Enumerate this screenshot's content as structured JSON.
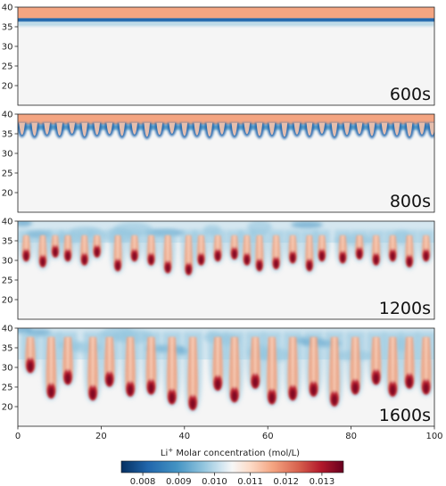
{
  "chart_data": [
    {
      "type": "heatmap",
      "label": "600s",
      "xlim": [
        0,
        100
      ],
      "ylim": [
        15,
        40
      ],
      "yticks": [
        20,
        25,
        30,
        35,
        40
      ],
      "front_y": 36.5,
      "fingers": []
    },
    {
      "type": "heatmap",
      "label": "800s",
      "xlim": [
        0,
        100
      ],
      "ylim": [
        15,
        40
      ],
      "yticks": [
        20,
        25,
        30,
        35,
        40
      ],
      "front_y": 36.0,
      "fingers": [
        {
          "x": 1,
          "tip": 34.5
        },
        {
          "x": 4,
          "tip": 34.2
        },
        {
          "x": 7,
          "tip": 34.6
        },
        {
          "x": 10,
          "tip": 34.3
        },
        {
          "x": 13,
          "tip": 34.8
        },
        {
          "x": 16,
          "tip": 34.1
        },
        {
          "x": 19,
          "tip": 34.5
        },
        {
          "x": 22,
          "tip": 34.7
        },
        {
          "x": 25,
          "tip": 34.2
        },
        {
          "x": 28,
          "tip": 34.6
        },
        {
          "x": 31,
          "tip": 34.0
        },
        {
          "x": 34,
          "tip": 34.5
        },
        {
          "x": 37,
          "tip": 34.8
        },
        {
          "x": 40,
          "tip": 34.2
        },
        {
          "x": 43,
          "tip": 34.4
        },
        {
          "x": 46,
          "tip": 34.1
        },
        {
          "x": 49,
          "tip": 34.6
        },
        {
          "x": 52,
          "tip": 34.3
        },
        {
          "x": 55,
          "tip": 34.7
        },
        {
          "x": 58,
          "tip": 34.2
        },
        {
          "x": 61,
          "tip": 34.5
        },
        {
          "x": 64,
          "tip": 34.0
        },
        {
          "x": 67,
          "tip": 34.6
        },
        {
          "x": 70,
          "tip": 34.3
        },
        {
          "x": 73,
          "tip": 34.8
        },
        {
          "x": 76,
          "tip": 34.1
        },
        {
          "x": 79,
          "tip": 34.5
        },
        {
          "x": 82,
          "tip": 34.7
        },
        {
          "x": 85,
          "tip": 34.2
        },
        {
          "x": 88,
          "tip": 34.6
        },
        {
          "x": 91,
          "tip": 34.4
        },
        {
          "x": 94,
          "tip": 34.1
        },
        {
          "x": 97,
          "tip": 34.6
        },
        {
          "x": 99.5,
          "tip": 34.4
        }
      ]
    },
    {
      "type": "heatmap",
      "label": "1200s",
      "xlim": [
        0,
        100
      ],
      "ylim": [
        15,
        40
      ],
      "yticks": [
        20,
        25,
        30,
        35,
        40
      ],
      "front_y": 38.0,
      "fingers": [
        {
          "x": 2,
          "tip": 30.5
        },
        {
          "x": 6,
          "tip": 29.0
        },
        {
          "x": 9,
          "tip": 31.5
        },
        {
          "x": 12,
          "tip": 30.5
        },
        {
          "x": 16,
          "tip": 29.5
        },
        {
          "x": 19,
          "tip": 31.5
        },
        {
          "x": 24,
          "tip": 28.0
        },
        {
          "x": 28,
          "tip": 30.5
        },
        {
          "x": 32,
          "tip": 29.5
        },
        {
          "x": 36,
          "tip": 27.5
        },
        {
          "x": 41,
          "tip": 27.0
        },
        {
          "x": 44,
          "tip": 29.5
        },
        {
          "x": 48,
          "tip": 30.5
        },
        {
          "x": 52,
          "tip": 31.0
        },
        {
          "x": 55,
          "tip": 29.5
        },
        {
          "x": 58,
          "tip": 28.0
        },
        {
          "x": 62,
          "tip": 28.5
        },
        {
          "x": 66,
          "tip": 30.0
        },
        {
          "x": 70,
          "tip": 28.0
        },
        {
          "x": 73,
          "tip": 30.5
        },
        {
          "x": 78,
          "tip": 30.0
        },
        {
          "x": 82,
          "tip": 31.0
        },
        {
          "x": 86,
          "tip": 29.5
        },
        {
          "x": 90,
          "tip": 30.5
        },
        {
          "x": 94,
          "tip": 29.0
        },
        {
          "x": 98,
          "tip": 30.5
        }
      ]
    },
    {
      "type": "heatmap",
      "label": "1600s",
      "xlim": [
        0,
        100
      ],
      "ylim": [
        15,
        40
      ],
      "yticks": [
        20,
        25,
        30,
        35,
        40
      ],
      "front_y": 39.0,
      "fingers": [
        {
          "x": 3,
          "tip": 29.5
        },
        {
          "x": 8,
          "tip": 23.0
        },
        {
          "x": 12,
          "tip": 26.5
        },
        {
          "x": 18,
          "tip": 22.5
        },
        {
          "x": 22,
          "tip": 26.0
        },
        {
          "x": 27,
          "tip": 23.5
        },
        {
          "x": 32,
          "tip": 24.0
        },
        {
          "x": 37,
          "tip": 21.5
        },
        {
          "x": 42,
          "tip": 20.0
        },
        {
          "x": 48,
          "tip": 25.0
        },
        {
          "x": 52,
          "tip": 22.0
        },
        {
          "x": 57,
          "tip": 25.5
        },
        {
          "x": 61,
          "tip": 21.5
        },
        {
          "x": 66,
          "tip": 22.5
        },
        {
          "x": 71,
          "tip": 23.5
        },
        {
          "x": 76,
          "tip": 21.0
        },
        {
          "x": 81,
          "tip": 24.0
        },
        {
          "x": 86,
          "tip": 26.5
        },
        {
          "x": 90,
          "tip": 23.5
        },
        {
          "x": 94,
          "tip": 25.5
        },
        {
          "x": 98,
          "tip": 24.0
        }
      ]
    }
  ],
  "xticks": [
    0,
    20,
    40,
    60,
    80,
    100
  ],
  "colorbar": {
    "title_prefix": "Li",
    "title_superscript": "+",
    "title_rest": "  Molar concentration (mol/L)",
    "range": [
      0.0074,
      0.0136
    ],
    "ticks": [
      0.008,
      0.009,
      0.01,
      0.011,
      0.012,
      0.013
    ],
    "tick_labels": [
      "0.008",
      "0.009",
      "0.010",
      "0.011",
      "0.012",
      "0.013"
    ],
    "colormap": "RdBu_r",
    "colors": {
      "low": "#053061",
      "mid_low": "#4393c3",
      "center": "#f7f7f7",
      "mid_high": "#f4a582",
      "high": "#67001f"
    }
  }
}
